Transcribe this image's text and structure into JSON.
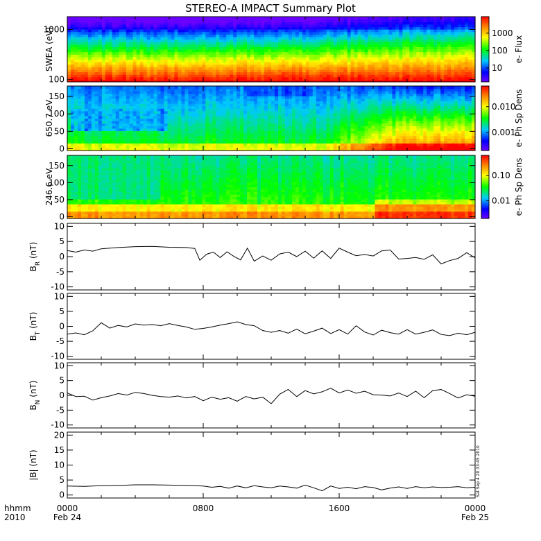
{
  "title": "STEREO-A IMPACT Summary Plot",
  "stamp": "Sat Sep  4 20:33:45 2010",
  "time_axis": {
    "row1_left": "hhmm",
    "row2_left": "2010",
    "ticks": [
      {
        "label": "0000",
        "sub": "Feb 24",
        "t": 0
      },
      {
        "label": "0800",
        "sub": "",
        "t": 8
      },
      {
        "label": "1600",
        "sub": "",
        "t": 16
      },
      {
        "label": "0000",
        "sub": "Feb 25",
        "t": 24
      }
    ]
  },
  "colors": {
    "spectrogram_scale": [
      "#6a00ff",
      "#0000ff",
      "#00c8ff",
      "#00ff00",
      "#ffff00",
      "#ff7f00",
      "#ff0000"
    ],
    "line": "#000000"
  },
  "chart_data": [
    {
      "type": "heatmap",
      "id": "swea",
      "ylabel": "SWEA (eV)",
      "yscale": "log",
      "ylim": [
        90,
        1800
      ],
      "yticks": [
        "100",
        "1000"
      ],
      "colorbar": {
        "label": "e- Flux",
        "scale": "log",
        "ticks": [
          "10",
          "100",
          "1000"
        ]
      },
      "description_values": {
        "hours": [
          0,
          4,
          8,
          12,
          16,
          20,
          24
        ],
        "high_energy_flux_rise_start_hour": 14
      }
    },
    {
      "type": "heatmap",
      "id": "pad650",
      "ylabel": "650.7 eV",
      "ylim": [
        -5,
        180
      ],
      "yticks": [
        "0",
        "50",
        "100",
        "150"
      ],
      "colorbar": {
        "label": "e- Ph Sp Dens",
        "scale": "log",
        "ticks": [
          "0.001",
          "0.010"
        ]
      }
    },
    {
      "type": "heatmap",
      "id": "pad246",
      "ylabel": "246.6 eV",
      "ylim": [
        -5,
        180
      ],
      "yticks": [
        "0",
        "50",
        "100",
        "150"
      ],
      "colorbar": {
        "label": "e- Ph Sp Dens",
        "scale": "log",
        "ticks": [
          "0.01",
          "0.10"
        ]
      }
    },
    {
      "type": "line",
      "id": "br",
      "ylabel": "B",
      "ylabel_sub": "R",
      "ylabel_unit": " (nT)",
      "ylim": [
        -11,
        11
      ],
      "yticks": [
        "-10",
        "-5",
        "0",
        "5",
        "10"
      ],
      "x": [
        0,
        0.5,
        1,
        1.5,
        2,
        2.5,
        3,
        4,
        5,
        6,
        7,
        7.5,
        7.8,
        8.2,
        8.6,
        9,
        9.4,
        9.8,
        10.2,
        10.6,
        11,
        11.5,
        12,
        12.5,
        13,
        13.5,
        14,
        14.5,
        15,
        15.5,
        16,
        16.5,
        17,
        17.5,
        18,
        18.5,
        19,
        19.5,
        20,
        20.5,
        21,
        21.5,
        22,
        22.5,
        23,
        23.5,
        24
      ],
      "y": [
        2.0,
        1.5,
        2.2,
        1.8,
        2.6,
        2.8,
        3.0,
        3.3,
        3.4,
        3.1,
        3.0,
        2.7,
        -1.2,
        0.8,
        1.5,
        -0.3,
        1.6,
        0.1,
        -1.1,
        2.8,
        -1.5,
        0.2,
        -1.2,
        0.9,
        1.5,
        0.0,
        1.8,
        -0.5,
        1.9,
        -0.6,
        2.8,
        1.5,
        0.3,
        0.7,
        0.2,
        1.9,
        2.2,
        -0.8,
        -0.6,
        -0.3,
        -0.9,
        0.6,
        -2.4,
        -1.3,
        -0.6,
        1.3,
        -0.4
      ]
    },
    {
      "type": "line",
      "id": "bt",
      "ylabel": "B",
      "ylabel_sub": "T",
      "ylabel_unit": " (nT)",
      "ylim": [
        -11,
        11
      ],
      "yticks": [
        "-10",
        "-5",
        "0",
        "5",
        "10"
      ],
      "x": [
        0,
        0.5,
        1,
        1.5,
        2,
        2.5,
        3,
        3.5,
        4,
        4.5,
        5,
        5.5,
        6,
        6.5,
        7,
        7.5,
        8,
        8.5,
        9,
        9.5,
        10,
        10.5,
        11,
        11.5,
        12,
        12.5,
        13,
        13.5,
        14,
        14.5,
        15,
        15.5,
        16,
        16.5,
        17,
        17.5,
        18,
        18.5,
        19,
        19.5,
        20,
        20.5,
        21,
        21.5,
        22,
        22.5,
        23,
        23.5,
        24
      ],
      "y": [
        -2.6,
        -2.2,
        -2.8,
        -1.5,
        1.2,
        -0.6,
        0.3,
        -0.2,
        0.8,
        0.4,
        0.6,
        0.2,
        0.9,
        0.3,
        -0.2,
        -1.0,
        -0.7,
        -0.2,
        0.4,
        0.9,
        1.5,
        0.6,
        0.2,
        -1.4,
        -2.0,
        -1.4,
        -2.3,
        -0.9,
        -2.5,
        -1.6,
        -0.6,
        -2.4,
        -1.1,
        -2.6,
        0.2,
        -1.9,
        -2.9,
        -1.3,
        -2.1,
        -2.6,
        -1.1,
        -2.6,
        -2.0,
        -1.2,
        -2.7,
        -3.1,
        -2.3,
        -2.8,
        -2.0
      ]
    },
    {
      "type": "line",
      "id": "bn",
      "ylabel": "B",
      "ylabel_sub": "N",
      "ylabel_unit": " (nT)",
      "ylim": [
        -11,
        11
      ],
      "yticks": [
        "-10",
        "-5",
        "0",
        "5",
        "10"
      ],
      "x": [
        0,
        0.5,
        1,
        1.5,
        2,
        2.5,
        3,
        3.5,
        4,
        4.5,
        5,
        5.5,
        6,
        6.5,
        7,
        7.5,
        8,
        8.5,
        9,
        9.5,
        10,
        10.5,
        11,
        11.5,
        12,
        12.5,
        13,
        13.5,
        14,
        14.5,
        15,
        15.5,
        16,
        16.5,
        17,
        17.5,
        18,
        18.5,
        19,
        19.5,
        20,
        20.5,
        21,
        21.5,
        22,
        22.5,
        23,
        23.5,
        24
      ],
      "y": [
        0.8,
        -0.4,
        -0.3,
        -1.6,
        -0.8,
        -0.2,
        0.6,
        0.1,
        1.0,
        0.6,
        0.0,
        -0.4,
        -0.6,
        -0.2,
        -0.9,
        -0.4,
        -1.8,
        -0.6,
        -1.3,
        -0.8,
        -2.0,
        -0.4,
        -1.2,
        -0.6,
        -2.8,
        0.4,
        2.0,
        -0.4,
        1.6,
        0.5,
        1.2,
        2.4,
        0.8,
        1.8,
        0.7,
        1.4,
        0.2,
        0.1,
        -0.2,
        0.8,
        -0.4,
        1.4,
        -0.8,
        1.6,
        2.0,
        0.6,
        -0.9,
        0.2,
        -0.3
      ]
    },
    {
      "type": "line",
      "id": "bmag",
      "ylabel": "|B| (nT)",
      "ylim": [
        -1,
        21
      ],
      "yticks": [
        "0",
        "5",
        "10",
        "15",
        "20"
      ],
      "x": [
        0,
        1,
        2,
        3,
        4,
        5,
        6,
        7,
        8,
        8.5,
        9,
        9.5,
        10,
        10.5,
        11,
        11.5,
        12,
        12.5,
        13,
        13.5,
        14,
        14.5,
        15,
        15.5,
        16,
        16.5,
        17,
        17.5,
        18,
        18.5,
        19,
        19.5,
        20,
        20.5,
        21,
        21.5,
        22,
        22.5,
        23,
        23.5,
        24
      ],
      "y": [
        3.0,
        2.9,
        3.1,
        3.2,
        3.4,
        3.4,
        3.3,
        3.2,
        3.0,
        2.6,
        2.9,
        2.3,
        3.0,
        2.4,
        3.1,
        2.7,
        2.4,
        3.0,
        2.7,
        2.3,
        3.3,
        2.4,
        1.4,
        3.0,
        2.2,
        2.6,
        2.1,
        2.8,
        2.5,
        1.7,
        2.3,
        2.7,
        2.2,
        2.8,
        2.4,
        2.7,
        2.5,
        2.6,
        2.8,
        2.4,
        2.6
      ]
    }
  ]
}
